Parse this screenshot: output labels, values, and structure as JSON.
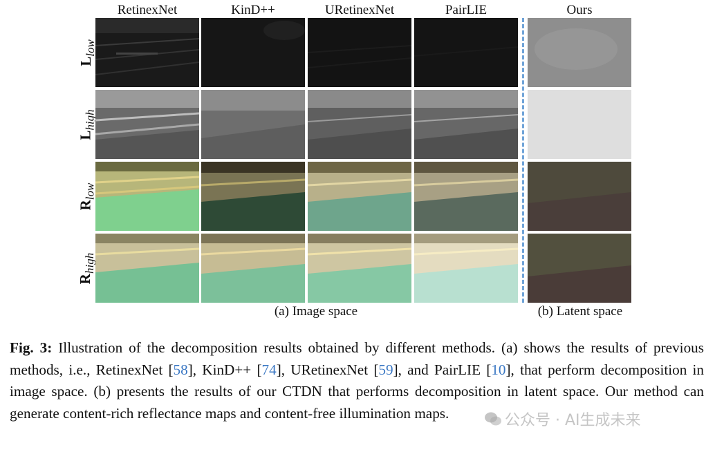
{
  "figure": {
    "columns": [
      "RetinexNet",
      "KinD++",
      "URetinexNet",
      "PairLIE",
      "Ours"
    ],
    "rows": [
      {
        "base": "L",
        "sub": "low"
      },
      {
        "base": "L",
        "sub": "high"
      },
      {
        "base": "R",
        "sub": "low"
      },
      {
        "base": "R",
        "sub": "high"
      }
    ],
    "subcaption_a": "(a) Image space",
    "subcaption_b": "(b) Latent space"
  },
  "caption": {
    "label": "Fig. 3:",
    "text_1": " Illustration of the decomposition results obtained by different methods. (a) shows the results of previous methods, i.e., RetinexNet [",
    "ref_1": "58",
    "text_2": "], KinD++ [",
    "ref_2": "74",
    "text_3": "], URetinexNet [",
    "ref_3": "59",
    "text_4": "], and PairLIE [",
    "ref_4": "10",
    "text_5": "], that perform decomposition in image space. (b) presents the results of our CTDN that performs decomposition in latent space. Our method can generate content-rich reflectance maps and content-free illumination maps."
  },
  "watermark": "公众号 · AI生成未来",
  "colors": {
    "ref": "#3b78c4",
    "separator": "#6fa3d8"
  }
}
